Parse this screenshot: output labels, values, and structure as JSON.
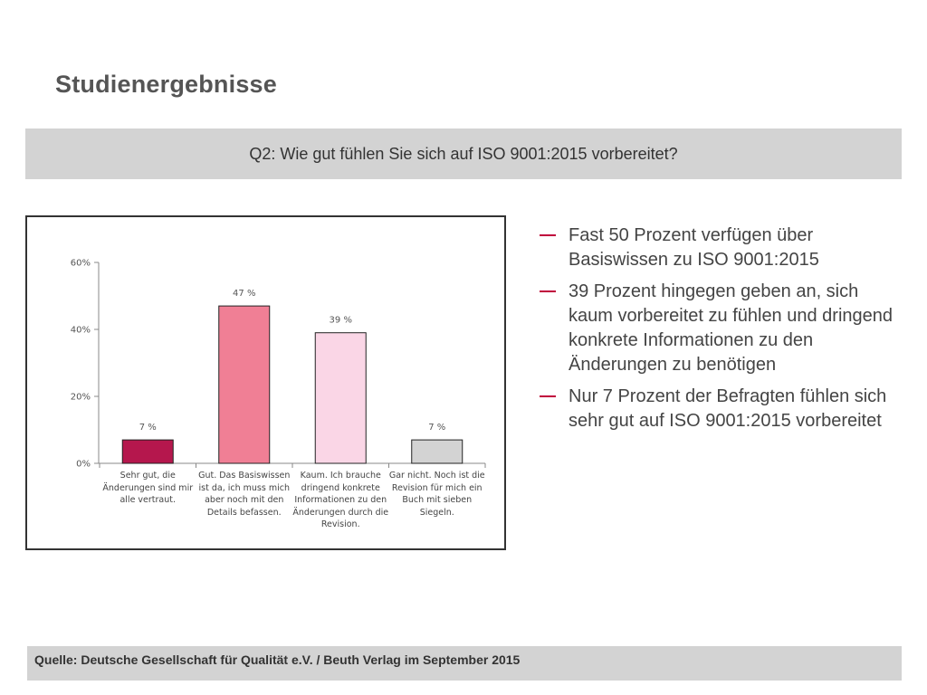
{
  "slide": {
    "title": "Studienergebnisse",
    "question": "Q2: Wie gut fühlen Sie sich auf ISO 9001:2015 vorbereitet?",
    "source": "Quelle: Deutsche Gesellschaft für Qualität e.V. / Beuth Verlag im September  2015"
  },
  "bullets": [
    "Fast 50 Prozent verfügen über Basiswissen zu ISO 9001:2015",
    "39 Prozent hingegen geben an, sich kaum vorbereitet zu fühlen und dringend konkrete Informationen zu den Änderungen zu benötigen",
    "Nur 7 Prozent der Befragten fühlen sich sehr gut auf ISO 9001:2015 vorbereitet"
  ],
  "colors": {
    "accent": "#c0003c",
    "bar_colors": [
      "#b5174d",
      "#f07f95",
      "#fad6e6",
      "#d3d3d3"
    ]
  },
  "chart_data": {
    "type": "bar",
    "categories": [
      "Sehr gut, die Änderungen sind mir alle vertraut.",
      "Gut. Das Basiswissen ist da, ich muss mich aber noch mit den Details befassen.",
      "Kaum. Ich brauche dringend konkrete Informationen zu den Änderungen  durch die Revision.",
      "Gar nicht. Noch ist die Revision für mich ein Buch mit sieben Siegeln."
    ],
    "category_lines": [
      [
        "Sehr gut, die",
        "Änderungen sind mir",
        "alle vertraut."
      ],
      [
        "Gut. Das Basiswissen",
        "ist da, ich muss mich",
        "aber noch mit den",
        "Details befassen."
      ],
      [
        "Kaum. Ich brauche",
        "dringend konkrete",
        "Informationen zu den",
        "Änderungen  durch die",
        "Revision."
      ],
      [
        "Gar nicht. Noch ist die",
        "Revision für mich ein",
        "Buch mit sieben",
        "Siegeln."
      ]
    ],
    "values": [
      7,
      47,
      39,
      7
    ],
    "data_labels": [
      "7 %",
      "47 %",
      "39 %",
      "7 %"
    ],
    "ylim": [
      0,
      60
    ],
    "yticks": [
      0,
      20,
      40,
      60
    ],
    "ytick_labels": [
      "0%",
      "20%",
      "40%",
      "60%"
    ],
    "grid": false,
    "legend": false
  }
}
